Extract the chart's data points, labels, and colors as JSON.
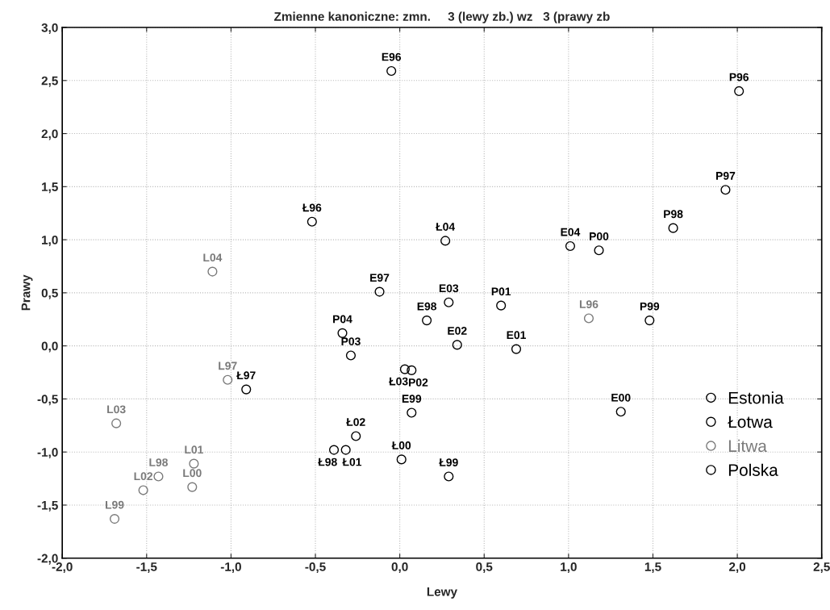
{
  "chart_data": {
    "type": "scatter",
    "title": "Zmienne kanoniczne: zmn.     3 (lewy zb.) wz   3 (prawy zb",
    "xlabel": "Lewy",
    "ylabel": "Prawy",
    "xlim": [
      -2.0,
      2.5
    ],
    "ylim": [
      -2.0,
      3.0
    ],
    "xticks": [
      {
        "value": -2.0,
        "label": "-2,0"
      },
      {
        "value": -1.5,
        "label": "-1,5"
      },
      {
        "value": -1.0,
        "label": "-1,0"
      },
      {
        "value": -0.5,
        "label": "-0,5"
      },
      {
        "value": 0.0,
        "label": "0,0"
      },
      {
        "value": 0.5,
        "label": "0,5"
      },
      {
        "value": 1.0,
        "label": "1,0"
      },
      {
        "value": 1.5,
        "label": "1,5"
      },
      {
        "value": 2.0,
        "label": "2,0"
      },
      {
        "value": 2.5,
        "label": "2,5"
      }
    ],
    "yticks": [
      {
        "value": -2.0,
        "label": "-2,0"
      },
      {
        "value": -1.5,
        "label": "-1,5"
      },
      {
        "value": -1.0,
        "label": "-1,0"
      },
      {
        "value": -0.5,
        "label": "-0,5"
      },
      {
        "value": 0.0,
        "label": "0,0"
      },
      {
        "value": 0.5,
        "label": "0,5"
      },
      {
        "value": 1.0,
        "label": "1,0"
      },
      {
        "value": 1.5,
        "label": "1,5"
      },
      {
        "value": 2.0,
        "label": "2,0"
      },
      {
        "value": 2.5,
        "label": "2,5"
      },
      {
        "value": 3.0,
        "label": "3,0"
      }
    ],
    "grid": true,
    "legend": "bottom right",
    "marker": "circle",
    "series": [
      {
        "name": "Estonia",
        "color": "#000000",
        "x": [
          -0.05,
          -0.12,
          0.16,
          0.07,
          1.31,
          0.69,
          0.34,
          0.29,
          1.01
        ],
        "values": [
          2.59,
          0.51,
          0.24,
          -0.63,
          -0.62,
          -0.03,
          0.01,
          0.41,
          0.94
        ],
        "value_labels": [
          "E96",
          "E97",
          "E98",
          "E99",
          "E00",
          "E01",
          "E02",
          "E03",
          "E04"
        ]
      },
      {
        "name": "Łotwa",
        "color": "#000000",
        "x": [
          -0.52,
          -0.91,
          -0.39,
          0.29,
          0.01,
          -0.32,
          -0.26,
          0.03,
          0.27
        ],
        "values": [
          1.17,
          -0.41,
          -0.98,
          -1.23,
          -1.07,
          -0.98,
          -0.85,
          -0.22,
          0.99
        ],
        "value_labels": [
          "Ł96",
          "Ł97",
          "Ł98",
          "Ł99",
          "Ł00",
          "Ł01",
          "Ł02",
          "Ł03",
          "Ł04"
        ]
      },
      {
        "name": "Litwa",
        "color": "#7a7a7a",
        "x": [
          1.12,
          -1.02,
          -1.43,
          -1.69,
          -1.23,
          -1.22,
          -1.52,
          -1.68,
          -1.11
        ],
        "values": [
          0.26,
          -0.32,
          -1.23,
          -1.63,
          -1.33,
          -1.11,
          -1.36,
          -0.73,
          0.7
        ],
        "value_labels": [
          "L96",
          "L97",
          "L98",
          "L99",
          "L00",
          "L01",
          "L02",
          "L03",
          "L04"
        ]
      },
      {
        "name": "Polska",
        "color": "#000000",
        "x": [
          2.01,
          1.93,
          1.62,
          1.48,
          1.18,
          0.6,
          0.07,
          -0.29,
          -0.34
        ],
        "values": [
          2.4,
          1.47,
          1.11,
          0.24,
          0.9,
          0.38,
          -0.23,
          -0.09,
          0.12
        ],
        "value_labels": [
          "P96",
          "P97",
          "P98",
          "P99",
          "P00",
          "P01",
          "P02",
          "P03",
          "P04"
        ]
      }
    ]
  }
}
